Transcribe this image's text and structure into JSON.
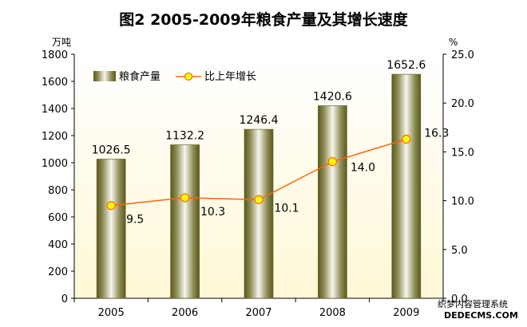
{
  "chart_data": {
    "type": "bar",
    "title": "图2  2005-2009年粮食产量及其增长速度",
    "categories": [
      "2005",
      "2006",
      "2007",
      "2008",
      "2009"
    ],
    "series": [
      {
        "name": "粮食产量",
        "type": "bar",
        "axis": "left",
        "values": [
          1026.5,
          1132.2,
          1246.4,
          1420.6,
          1652.6
        ],
        "labels": [
          "1026.5",
          "1132.2",
          "1246.4",
          "1420.6",
          "1652.6"
        ]
      },
      {
        "name": "比上年增长",
        "type": "line",
        "axis": "right",
        "values": [
          9.5,
          10.3,
          10.1,
          14.0,
          16.3
        ],
        "labels": [
          "9.5",
          "10.3",
          "10.1",
          "14.0",
          "16.3"
        ]
      }
    ],
    "y_left": {
      "label": "万吨",
      "range": [
        0,
        1800
      ],
      "ticks": [
        "0",
        "200",
        "400",
        "600",
        "800",
        "1000",
        "1200",
        "1400",
        "1600",
        "1800"
      ]
    },
    "y_right": {
      "label": "%",
      "range": [
        0,
        25
      ],
      "ticks": [
        "0.0",
        "5.0",
        "10.0",
        "15.0",
        "20.0",
        "25.0"
      ]
    },
    "legend": "top-left",
    "grid": false,
    "colors": {
      "bar_edge": "#5a5a1e",
      "bar_mid": "#f4f4e8",
      "line": "#ff6600",
      "marker": "#ffff00",
      "plot_bg": "#fffde9"
    }
  },
  "watermark": {
    "line1": "织梦内容管理系统",
    "line2": "DEDECMS.COM"
  }
}
